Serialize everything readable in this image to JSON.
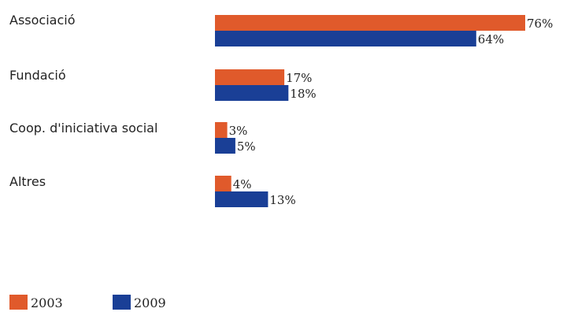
{
  "chart_data": {
    "type": "bar",
    "orientation": "horizontal",
    "categories": [
      "Associació",
      "Fundació",
      "Coop. d'iniciativa social",
      "Altres"
    ],
    "series": [
      {
        "name": "2003",
        "color": "#e05a2b",
        "values": [
          76,
          17,
          3,
          4
        ],
        "labels": [
          "76%",
          "17%",
          "3%",
          "4%"
        ]
      },
      {
        "name": "2009",
        "color": "#1a3f96",
        "values": [
          64,
          18,
          5,
          13
        ],
        "labels": [
          "64%",
          "18%",
          "5%",
          "13%"
        ]
      }
    ],
    "xlim": [
      0,
      100
    ],
    "grid": false,
    "legend_position": "bottom-left",
    "title": "",
    "xlabel": "",
    "ylabel": ""
  }
}
